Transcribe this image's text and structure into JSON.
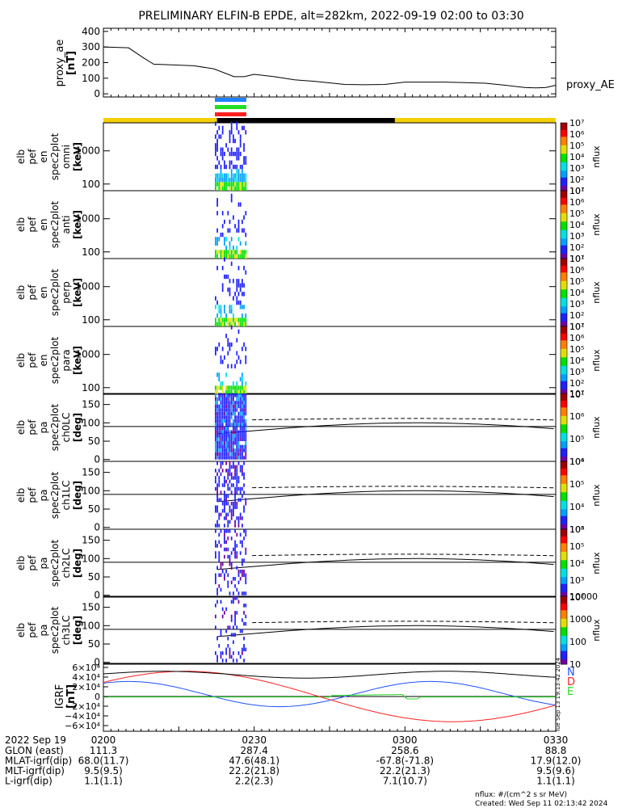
{
  "title": "PRELIMINARY ELFIN-B EPDE, alt=282km, 2022-09-19 02:00 to 03:30",
  "palette": {
    "yellow": "#f5d000",
    "black": "#000000",
    "blue": "#2080ff",
    "green": "#22dd22",
    "red": "#ff2020",
    "ae_line": "#000000"
  },
  "ae_panel": {
    "ylabel": [
      "proxy_ae",
      "[nT]"
    ],
    "legend": "proxy_AE",
    "yticks": [
      0,
      100,
      200,
      300,
      400
    ],
    "ylim": [
      -20,
      420
    ]
  },
  "energy_panels": [
    {
      "ylabel": [
        "elb",
        "pef",
        "en",
        "spec2plot",
        "omni",
        "[keV]"
      ]
    },
    {
      "ylabel": [
        "elb",
        "pef",
        "en",
        "spec2plot",
        "anti",
        "[keV]"
      ]
    },
    {
      "ylabel": [
        "elb",
        "pef",
        "en",
        "spec2plot",
        "perp",
        "[keV]"
      ]
    },
    {
      "ylabel": [
        "elb",
        "pef",
        "en",
        "spec2plot",
        "para",
        "[keV]"
      ]
    }
  ],
  "energy_yticks": [
    100,
    1000
  ],
  "energy_colorbar": {
    "unit": "nflux",
    "ticks": [
      "10¹",
      "10²",
      "10³",
      "10⁴",
      "10⁵",
      "10⁶",
      "10⁷"
    ]
  },
  "pa_panels": [
    {
      "ylabel": [
        "elb",
        "pef",
        "pa",
        "spec2plot",
        "ch0LC",
        "[deg]"
      ],
      "cbar_ticks": [
        "10⁴",
        "10⁵",
        "10⁶",
        "10⁷"
      ]
    },
    {
      "ylabel": [
        "elb",
        "pef",
        "pa",
        "spec2plot",
        "ch1LC",
        "[deg]"
      ],
      "cbar_ticks": [
        "10³",
        "10⁴",
        "10⁵",
        "10⁶"
      ]
    },
    {
      "ylabel": [
        "elb",
        "pef",
        "pa",
        "spec2plot",
        "ch2LC",
        "[deg]"
      ],
      "cbar_ticks": [
        "10²",
        "10³",
        "10⁴",
        "10⁵",
        "10⁶"
      ]
    },
    {
      "ylabel": [
        "elb",
        "pef",
        "pa",
        "spec2plot",
        "ch3LC",
        "[deg]"
      ],
      "cbar_ticks": [
        "10",
        "100",
        "1000",
        "10000"
      ]
    }
  ],
  "pa_yticks": [
    0,
    50,
    100,
    150
  ],
  "pa_unit": "nflux",
  "igrf_panel": {
    "ylabel": [
      "IGRF",
      "[nT]"
    ],
    "yticks": [
      "6×10⁴",
      "4×10⁴",
      "2×10⁴",
      "0",
      "−2×10⁴",
      "−4×10⁴",
      "−6×10⁴"
    ],
    "legend": [
      {
        "label": "N",
        "color": "#2050ff"
      },
      {
        "label": "E",
        "color": "#22dd22"
      },
      {
        "label": "D",
        "color": "#ff2020"
      }
    ],
    "side_text": "Tue Sep 13 19:13:42 2024"
  },
  "xaxis": {
    "date": "2022 Sep 19",
    "ticks": [
      "0200",
      "0230",
      "0300",
      "0330"
    ],
    "rows": [
      {
        "label": "GLON (east)",
        "values": [
          "111.3",
          "287.4",
          "258.6",
          "88.8"
        ]
      },
      {
        "label": "MLAT-igrf(dip)",
        "values": [
          "68.0(11.7)",
          "47.6(48.1)",
          "-67.8(-71.8)",
          "17.9(12.0)"
        ]
      },
      {
        "label": "MLT-igrf(dip)",
        "values": [
          "9.5(9.5)",
          "22.2(21.8)",
          "22.2(21.3)",
          "9.5(9.6)"
        ]
      },
      {
        "label": "L-igrf(dip)",
        "values": [
          "1.1(1.1)",
          "2.2(2.3)",
          "7.1(10.7)",
          "1.1(1.1)"
        ]
      }
    ]
  },
  "footer": [
    "nflux: #/(cm^2 s sr MeV)",
    "Created: Wed Sep 11 02:13:42 2024"
  ],
  "chart_data": {
    "type": "line",
    "x_range": [
      "02:00",
      "03:30"
    ],
    "proxy_ae": {
      "x": [
        0,
        5,
        8,
        10,
        14,
        18,
        22,
        26,
        28,
        30,
        34,
        38,
        42,
        48,
        52,
        56,
        60,
        64,
        68,
        72,
        76,
        80,
        84,
        86,
        88,
        90
      ],
      "y": [
        300,
        295,
        230,
        190,
        185,
        180,
        160,
        110,
        110,
        125,
        110,
        90,
        80,
        60,
        58,
        60,
        75,
        75,
        75,
        72,
        68,
        55,
        40,
        38,
        40,
        55
      ]
    },
    "orbit_bar": [
      {
        "start": 0,
        "end": 22.6,
        "color": "yellow"
      },
      {
        "start": 22.6,
        "end": 58,
        "color": "black"
      },
      {
        "start": 58,
        "end": 90,
        "color": "yellow"
      }
    ],
    "science_zone": {
      "start": 22.6,
      "end": 29
    }
  }
}
